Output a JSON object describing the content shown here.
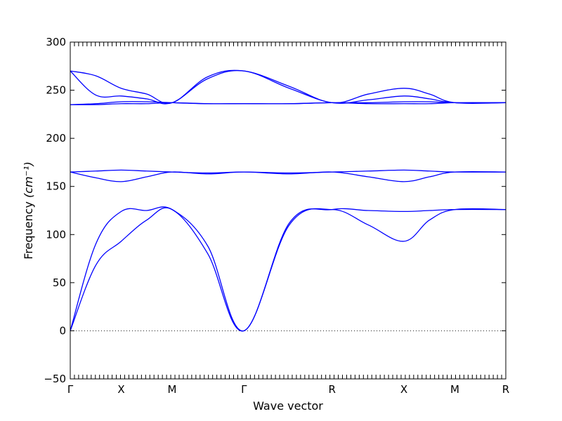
{
  "chart_data": {
    "type": "line",
    "title": "",
    "xlabel": "Wave vector",
    "ylabel": "Frequency",
    "ylabel_unit": "(cm⁻¹)",
    "ylim": [
      -50,
      300
    ],
    "yticks": [
      -50,
      0,
      50,
      100,
      150,
      200,
      250,
      300
    ],
    "grid": false,
    "legend": "none",
    "line_color": "#0000ff",
    "zero_line": true,
    "xticks": [
      {
        "label": "Γ",
        "pos": 0
      },
      {
        "label": "X",
        "pos": 1
      },
      {
        "label": "M",
        "pos": 2
      },
      {
        "label": "Γ",
        "pos": 3.41
      },
      {
        "label": "R",
        "pos": 5.14
      },
      {
        "label": "X",
        "pos": 6.55
      },
      {
        "label": "M",
        "pos": 7.55
      },
      {
        "label": "R",
        "pos": 8.55
      }
    ],
    "xlim": [
      0,
      8.55
    ],
    "series": [
      {
        "x": [
          0,
          0.5,
          1,
          1.5,
          2,
          2.7,
          3.41,
          4.3,
          5.14,
          5.85,
          6.55,
          7.05,
          7.55,
          8.55
        ],
        "y": [
          0,
          68,
          93,
          115,
          126,
          80,
          0,
          110,
          126,
          110,
          93,
          115,
          126,
          126
        ]
      },
      {
        "x": [
          0,
          0.5,
          1,
          1.5,
          2,
          2.7,
          3.41,
          4.3,
          5.14,
          5.85,
          6.55,
          7.05,
          7.55,
          8.55
        ],
        "y": [
          0,
          90,
          124,
          125,
          126,
          88,
          0,
          112,
          126,
          125,
          124,
          125,
          126,
          126
        ]
      },
      {
        "x": [
          0,
          0.5,
          1,
          1.5,
          2,
          2.7,
          3.41,
          4.3,
          5.14,
          5.85,
          6.55,
          7.05,
          7.55,
          8.55
        ],
        "y": [
          165,
          159,
          155,
          160,
          165,
          163,
          165,
          163,
          165,
          160,
          155,
          160,
          165,
          165
        ]
      },
      {
        "x": [
          0,
          0.5,
          1,
          1.5,
          2,
          2.7,
          3.41,
          4.3,
          5.14,
          5.85,
          6.55,
          7.05,
          7.55,
          8.55
        ],
        "y": [
          165,
          166,
          167,
          166,
          165,
          164,
          165,
          164,
          165,
          166,
          167,
          166,
          165,
          165
        ]
      },
      {
        "x": [
          0,
          0.5,
          1,
          1.5,
          2,
          2.7,
          3.41,
          4.3,
          5.14,
          5.85,
          6.55,
          7.05,
          7.55,
          8.55
        ],
        "y": [
          235,
          235,
          236,
          236,
          237,
          236,
          236,
          236,
          237,
          236,
          236,
          236,
          237,
          237
        ]
      },
      {
        "x": [
          0,
          0.5,
          1,
          1.5,
          2,
          2.7,
          3.41,
          4.3,
          5.14,
          5.85,
          6.55,
          7.05,
          7.55,
          8.55
        ],
        "y": [
          235,
          236,
          238,
          238,
          237,
          236,
          236,
          236,
          237,
          237,
          238,
          238,
          237,
          237
        ]
      },
      {
        "x": [
          0,
          0.5,
          1,
          1.5,
          2,
          2.7,
          3.41,
          4.3,
          5.14,
          5.85,
          6.55,
          7.05,
          7.55,
          8.55
        ],
        "y": [
          270,
          245,
          244,
          241,
          237,
          262,
          270,
          252,
          237,
          240,
          244,
          241,
          237,
          237
        ]
      },
      {
        "x": [
          0,
          0.5,
          1,
          1.5,
          2,
          2.7,
          3.41,
          4.3,
          5.14,
          5.85,
          6.55,
          7.05,
          7.55,
          8.55
        ],
        "y": [
          270,
          265,
          252,
          246,
          237,
          264,
          270,
          254,
          237,
          246,
          252,
          246,
          237,
          237
        ]
      }
    ]
  }
}
